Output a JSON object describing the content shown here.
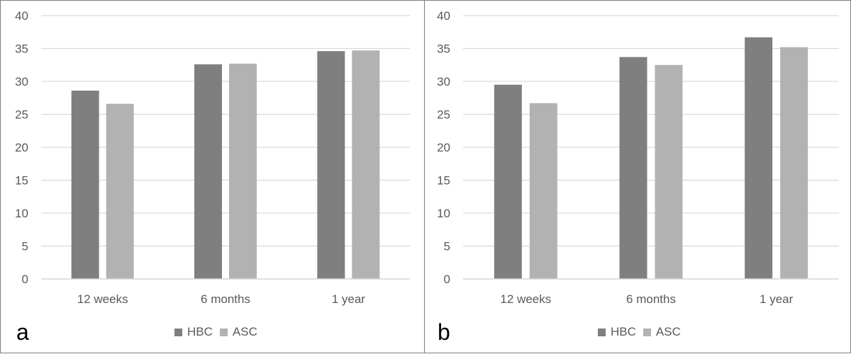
{
  "chart_data": [
    {
      "type": "bar",
      "panel_label": "a",
      "categories": [
        "12 weeks",
        "6 months",
        "1 year"
      ],
      "series": [
        {
          "name": "HBC",
          "values": [
            28.6,
            32.6,
            34.6
          ],
          "color": "#7f7f7f"
        },
        {
          "name": "ASC",
          "values": [
            26.6,
            32.7,
            34.7
          ],
          "color": "#b2b2b2"
        }
      ],
      "yticks": [
        "0",
        "5",
        "10",
        "15",
        "20",
        "25",
        "30",
        "35",
        "40"
      ],
      "ylim": [
        0,
        40
      ],
      "grid": true,
      "legend": "bottom"
    },
    {
      "type": "bar",
      "panel_label": "b",
      "categories": [
        "12 weeks",
        "6 months",
        "1 year"
      ],
      "series": [
        {
          "name": "HBC",
          "values": [
            29.5,
            33.7,
            36.7
          ],
          "color": "#7f7f7f"
        },
        {
          "name": "ASC",
          "values": [
            26.7,
            32.5,
            35.2
          ],
          "color": "#b2b2b2"
        }
      ],
      "yticks": [
        "0",
        "5",
        "10",
        "15",
        "20",
        "25",
        "30",
        "35",
        "40"
      ],
      "ylim": [
        0,
        40
      ],
      "grid": true,
      "legend": "bottom"
    }
  ],
  "colors": {
    "gridline": "#d9d9d9",
    "text": "#595959",
    "border": "#7f7f7f"
  }
}
